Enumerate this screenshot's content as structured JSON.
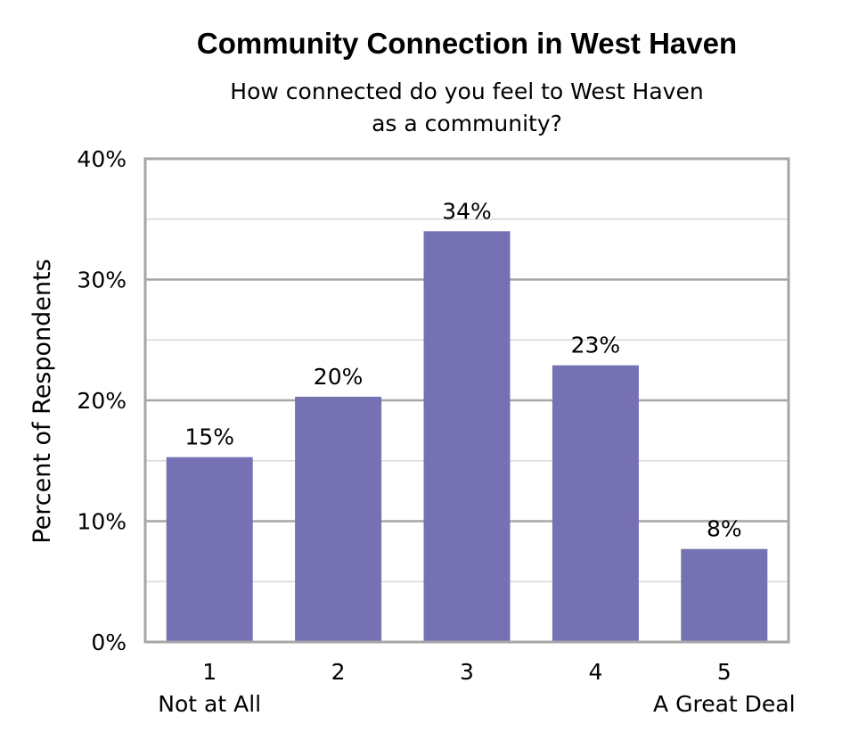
{
  "chart_data": {
    "type": "bar",
    "title": "Community Connection in West Haven",
    "subtitle_lines": [
      "How connected do you feel to West Haven",
      "as a community?"
    ],
    "ylabel": "Percent of Respondents",
    "xlabel": "",
    "categories": [
      "1",
      "2",
      "3",
      "4",
      "5"
    ],
    "category_sublabels": [
      "Not at All",
      "",
      "",
      "",
      "A Great Deal"
    ],
    "values": [
      15,
      20,
      34,
      23,
      8
    ],
    "plotted_values": [
      15.3,
      20.3,
      34.0,
      22.9,
      7.7
    ],
    "value_labels": [
      "15%",
      "20%",
      "34%",
      "23%",
      "8%"
    ],
    "ylim": [
      0,
      40
    ],
    "y_ticks": [
      0,
      10,
      20,
      30,
      40
    ],
    "y_tick_labels": [
      "0%",
      "10%",
      "20%",
      "30%",
      "40%"
    ],
    "grid": true,
    "legend": "none",
    "colors": {
      "bar": "#7571b3",
      "major_grid": "#a6a6a6",
      "minor_grid": "#d9d9d9",
      "frame": "#a6a6a6"
    }
  }
}
